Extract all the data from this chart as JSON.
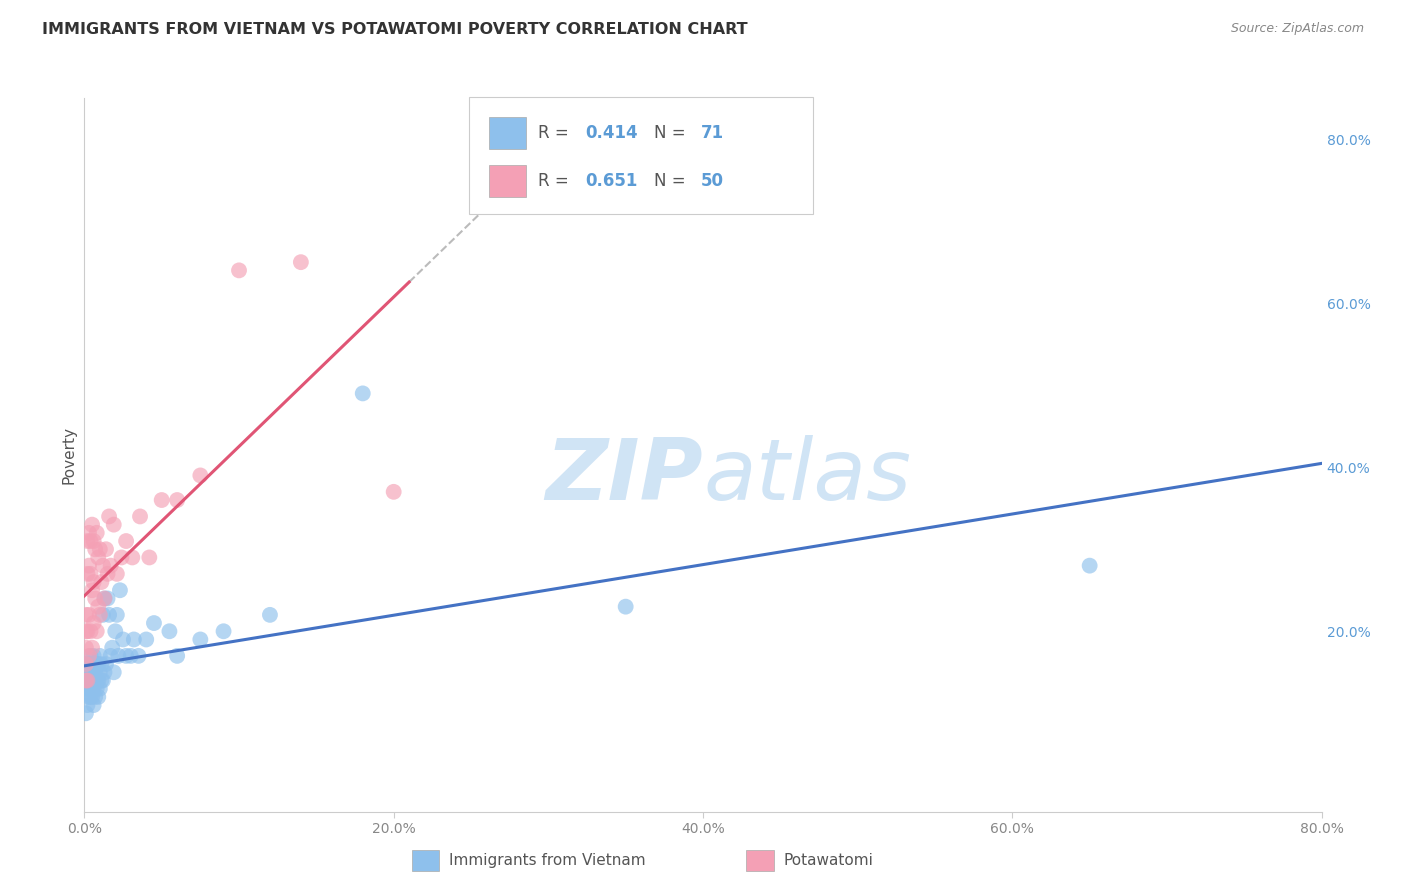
{
  "title": "IMMIGRANTS FROM VIETNAM VS POTAWATOMI POVERTY CORRELATION CHART",
  "source": "Source: ZipAtlas.com",
  "ylabel": "Poverty",
  "xlim": [
    0.0,
    0.8
  ],
  "ylim": [
    -0.02,
    0.85
  ],
  "xtick_vals": [
    0.0,
    0.2,
    0.4,
    0.6,
    0.8
  ],
  "xtick_labels": [
    "0.0%",
    "20.0%",
    "40.0%",
    "60.0%",
    "80.0%"
  ],
  "ytick_vals": [
    0.0,
    0.2,
    0.4,
    0.6,
    0.8
  ],
  "ytick_labels_right": [
    "",
    "20.0%",
    "40.0%",
    "60.0%",
    "80.0%"
  ],
  "blue_R": 0.414,
  "blue_N": 71,
  "pink_R": 0.651,
  "pink_N": 50,
  "blue_scatter_color": "#8EC0EC",
  "pink_scatter_color": "#F4A0B5",
  "blue_line_color": "#4472C4",
  "pink_line_color": "#E05575",
  "legend_text_color": "#5B9BD5",
  "legend_label_color": "#555555",
  "watermark_color": "#D0E4F5",
  "right_axis_color": "#5B9BD5",
  "blue_scatter_x": [
    0.001,
    0.001,
    0.001,
    0.001,
    0.002,
    0.002,
    0.002,
    0.002,
    0.002,
    0.003,
    0.003,
    0.003,
    0.003,
    0.003,
    0.004,
    0.004,
    0.004,
    0.004,
    0.005,
    0.005,
    0.005,
    0.005,
    0.005,
    0.006,
    0.006,
    0.006,
    0.006,
    0.007,
    0.007,
    0.007,
    0.007,
    0.008,
    0.008,
    0.008,
    0.009,
    0.009,
    0.009,
    0.01,
    0.01,
    0.01,
    0.011,
    0.011,
    0.012,
    0.012,
    0.013,
    0.013,
    0.014,
    0.015,
    0.016,
    0.017,
    0.018,
    0.019,
    0.02,
    0.021,
    0.022,
    0.023,
    0.025,
    0.027,
    0.03,
    0.032,
    0.035,
    0.04,
    0.045,
    0.055,
    0.06,
    0.075,
    0.09,
    0.12,
    0.18,
    0.35,
    0.65
  ],
  "blue_scatter_y": [
    0.13,
    0.1,
    0.14,
    0.16,
    0.11,
    0.13,
    0.14,
    0.15,
    0.16,
    0.12,
    0.13,
    0.14,
    0.15,
    0.16,
    0.12,
    0.14,
    0.15,
    0.17,
    0.12,
    0.13,
    0.14,
    0.15,
    0.16,
    0.11,
    0.13,
    0.15,
    0.17,
    0.12,
    0.14,
    0.15,
    0.16,
    0.13,
    0.14,
    0.16,
    0.12,
    0.14,
    0.16,
    0.13,
    0.15,
    0.17,
    0.14,
    0.16,
    0.14,
    0.22,
    0.15,
    0.24,
    0.16,
    0.24,
    0.22,
    0.17,
    0.18,
    0.15,
    0.2,
    0.22,
    0.17,
    0.25,
    0.19,
    0.17,
    0.17,
    0.19,
    0.17,
    0.19,
    0.21,
    0.2,
    0.17,
    0.19,
    0.2,
    0.22,
    0.49,
    0.23,
    0.28
  ],
  "pink_scatter_x": [
    0.001,
    0.001,
    0.001,
    0.001,
    0.001,
    0.002,
    0.002,
    0.002,
    0.002,
    0.003,
    0.003,
    0.003,
    0.003,
    0.004,
    0.004,
    0.004,
    0.005,
    0.005,
    0.005,
    0.006,
    0.006,
    0.006,
    0.007,
    0.007,
    0.008,
    0.008,
    0.009,
    0.009,
    0.01,
    0.01,
    0.011,
    0.012,
    0.013,
    0.014,
    0.015,
    0.016,
    0.017,
    0.019,
    0.021,
    0.024,
    0.027,
    0.031,
    0.036,
    0.042,
    0.05,
    0.06,
    0.075,
    0.1,
    0.14,
    0.2
  ],
  "pink_scatter_y": [
    0.14,
    0.16,
    0.18,
    0.2,
    0.22,
    0.14,
    0.2,
    0.27,
    0.31,
    0.17,
    0.22,
    0.28,
    0.32,
    0.2,
    0.27,
    0.31,
    0.18,
    0.25,
    0.33,
    0.21,
    0.26,
    0.31,
    0.24,
    0.3,
    0.2,
    0.32,
    0.23,
    0.29,
    0.22,
    0.3,
    0.26,
    0.28,
    0.24,
    0.3,
    0.27,
    0.34,
    0.28,
    0.33,
    0.27,
    0.29,
    0.31,
    0.29,
    0.34,
    0.29,
    0.36,
    0.36,
    0.39,
    0.64,
    0.65,
    0.37
  ]
}
